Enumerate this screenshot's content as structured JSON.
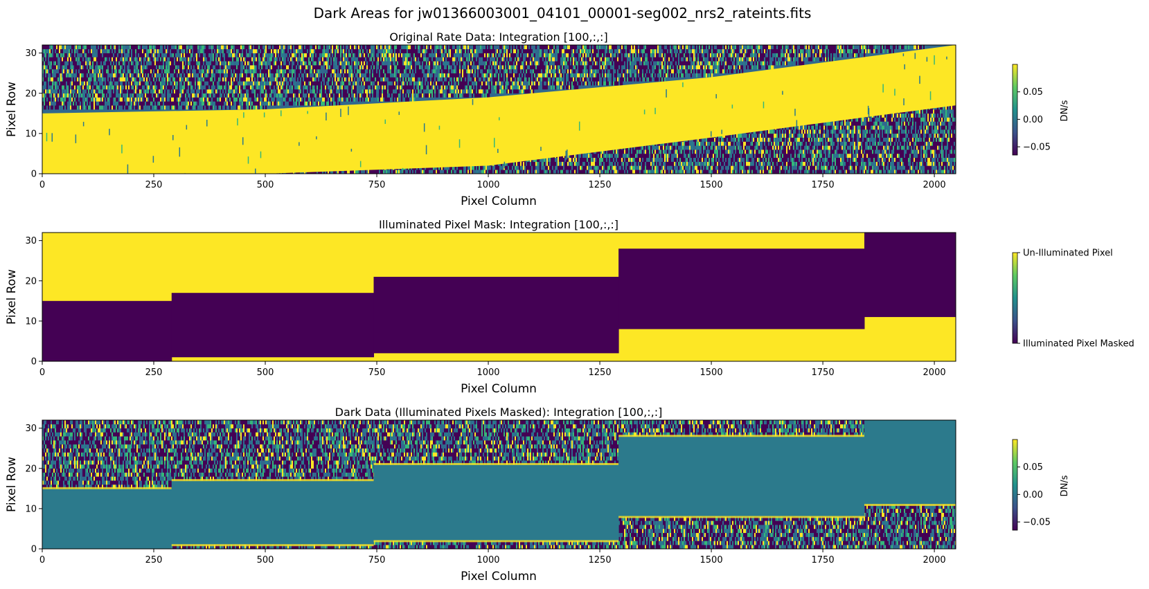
{
  "figure": {
    "suptitle": "Dark Areas for jw01366003001_04101_00001-seg002_nrs2_rateints.fits"
  },
  "colors": {
    "viridis_dark": "#440154",
    "viridis_blue": "#31688e",
    "viridis_teal": "#2a788e",
    "viridis_green": "#35b779",
    "viridis_yellow": "#fde725",
    "masked_fill": "#2c7a8c"
  },
  "chart_data": [
    {
      "type": "heatmap",
      "title": "Original Rate Data: Integration [100,:,:]",
      "xlabel": "Pixel Column",
      "ylabel": "Pixel Row",
      "xlim": [
        0,
        2048
      ],
      "ylim": [
        0,
        32
      ],
      "xticks": [
        0,
        250,
        500,
        750,
        1000,
        1250,
        1500,
        1750,
        2000
      ],
      "yticks": [
        0,
        10,
        20,
        30
      ],
      "trace": {
        "x": [
          0,
          500,
          1000,
          1500,
          2048
        ],
        "lower": [
          0,
          0,
          2,
          9,
          17
        ],
        "upper": [
          15,
          16,
          19,
          24,
          32
        ]
      },
      "colorbar": {
        "label": "DN/s",
        "range": [
          -0.065,
          0.1
        ],
        "ticks": [
          0.05,
          0.0,
          -0.05
        ],
        "tick_labels": [
          "0.05",
          "0.00",
          "−0.05"
        ]
      }
    },
    {
      "type": "heatmap",
      "title": "Illuminated Pixel Mask: Integration [100,:,:]",
      "xlabel": "Pixel Column",
      "ylabel": "Pixel Row",
      "xlim": [
        0,
        2048
      ],
      "ylim": [
        0,
        32
      ],
      "xticks": [
        0,
        250,
        500,
        750,
        1000,
        1250,
        1500,
        1750,
        2000
      ],
      "yticks": [
        0,
        10,
        20,
        30
      ],
      "mask_segments": [
        {
          "x0": 0,
          "x1": 290,
          "lower": 0,
          "upper": 15
        },
        {
          "x0": 290,
          "x1": 743,
          "lower": 1,
          "upper": 17
        },
        {
          "x0": 743,
          "x1": 1292,
          "lower": 2,
          "upper": 21
        },
        {
          "x0": 1292,
          "x1": 1843,
          "lower": 8,
          "upper": 28
        },
        {
          "x0": 1843,
          "x1": 2048,
          "lower": 11,
          "upper": 32
        }
      ],
      "colorbar": {
        "label": "",
        "ticks": [
          1,
          0
        ],
        "tick_labels": [
          "Un-Illuminated Pixel",
          "Illuminated Pixel Masked"
        ]
      }
    },
    {
      "type": "heatmap",
      "title": "Dark Data (Illuminated Pixels Masked): Integration [100,:,:]",
      "xlabel": "Pixel Column",
      "ylabel": "Pixel Row",
      "xlim": [
        0,
        2048
      ],
      "ylim": [
        0,
        32
      ],
      "xticks": [
        0,
        250,
        500,
        750,
        1000,
        1250,
        1500,
        1750,
        2000
      ],
      "yticks": [
        0,
        10,
        20,
        30
      ],
      "colorbar": {
        "label": "DN/s",
        "range": [
          -0.065,
          0.1
        ],
        "ticks": [
          0.05,
          0.0,
          -0.05
        ],
        "tick_labels": [
          "0.05",
          "0.00",
          "−0.05"
        ]
      }
    }
  ]
}
